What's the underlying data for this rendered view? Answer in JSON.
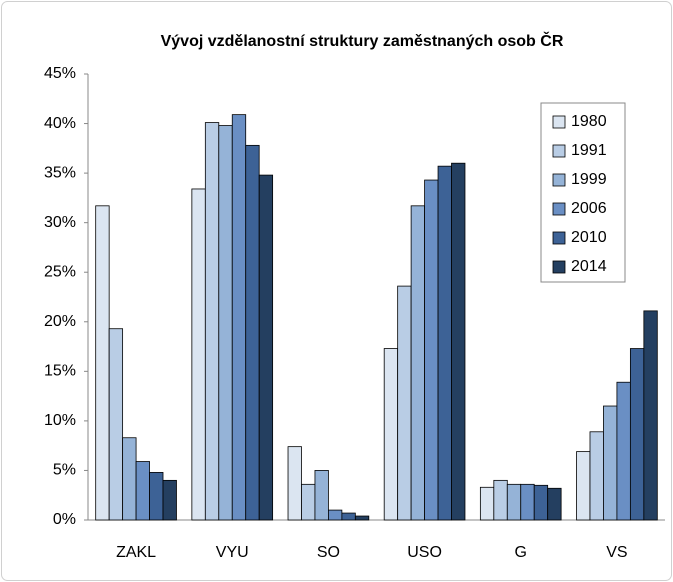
{
  "chart_data": {
    "type": "bar",
    "title": "Vývoj vzdělanostní struktury zaměstnaných osob ČR",
    "categories": [
      "ZAKL",
      "VYU",
      "SO",
      "USO",
      "G",
      "VS"
    ],
    "series": [
      {
        "name": "1980",
        "color": "#dbe5f1",
        "values": [
          31.7,
          33.4,
          7.4,
          17.3,
          3.3,
          6.9
        ]
      },
      {
        "name": "1991",
        "color": "#b9cde5",
        "values": [
          19.3,
          40.1,
          3.6,
          23.6,
          4.0,
          8.9
        ]
      },
      {
        "name": "1999",
        "color": "#95b3d7",
        "values": [
          8.3,
          39.8,
          5.0,
          31.7,
          3.6,
          11.5
        ]
      },
      {
        "name": "2006",
        "color": "#6a8fc4",
        "values": [
          5.9,
          40.9,
          1.0,
          34.3,
          3.6,
          13.9
        ]
      },
      {
        "name": "2010",
        "color": "#3d6296",
        "values": [
          4.8,
          37.8,
          0.7,
          35.7,
          3.5,
          17.3
        ]
      },
      {
        "name": "2014",
        "color": "#243f60",
        "values": [
          4.0,
          34.8,
          0.4,
          36.0,
          3.2,
          21.1
        ]
      }
    ],
    "ylim": [
      0,
      45
    ],
    "yticks": [
      {
        "value": 0,
        "label": "0%"
      },
      {
        "value": 5,
        "label": "5%"
      },
      {
        "value": 10,
        "label": "10%"
      },
      {
        "value": 15,
        "label": "15%"
      },
      {
        "value": 20,
        "label": "20%"
      },
      {
        "value": 25,
        "label": "25%"
      },
      {
        "value": 30,
        "label": "30%"
      },
      {
        "value": 35,
        "label": "35%"
      },
      {
        "value": 40,
        "label": "40%"
      },
      {
        "value": 45,
        "label": "45%"
      }
    ],
    "grid": false,
    "legend": "upper right"
  }
}
